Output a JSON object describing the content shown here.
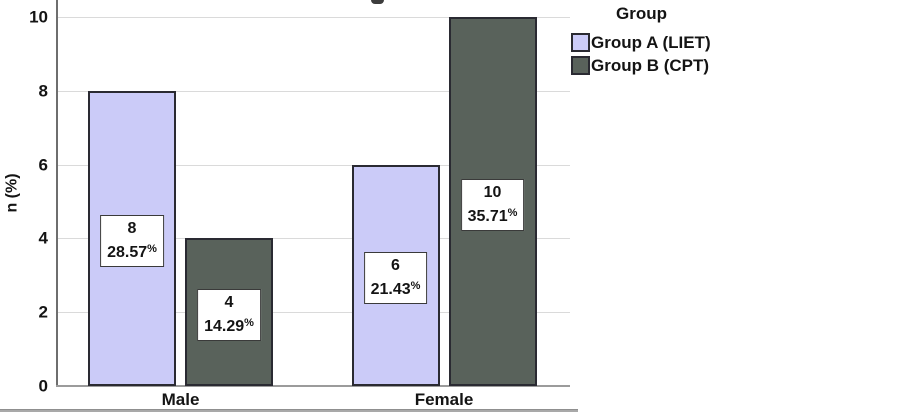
{
  "legend": {
    "title": "Group",
    "items": [
      {
        "label": "Group A (LIET)",
        "color": "#cbcbf8"
      },
      {
        "label": "Group B (CPT)",
        "color": "#59625b"
      }
    ]
  },
  "chart_data": {
    "type": "bar",
    "title": "",
    "ylabel": "n (%)",
    "xlabel": "",
    "categories": [
      "Male",
      "Female"
    ],
    "y_ticks": [
      0,
      2,
      4,
      6,
      8,
      10
    ],
    "ylim": [
      0,
      10.45
    ],
    "grid": true,
    "legend_position": "top-right",
    "series": [
      {
        "name": "Group A (LIET)",
        "color": "#cbcbf8",
        "values": [
          8,
          6
        ],
        "percents": [
          "28.57%",
          "21.43%"
        ]
      },
      {
        "name": "Group B (CPT)",
        "color": "#59625b",
        "values": [
          4,
          10
        ],
        "percents": [
          "14.29%",
          "35.71%"
        ]
      }
    ]
  },
  "colors": {
    "group_a_fill": "#cbcbf8",
    "group_b_fill": "#59625b",
    "bar_border": "#2a2a32",
    "gridline": "#dadada",
    "axis_line": "#6e6e6e",
    "label_box_bg": "#ffffff",
    "label_box_border": "#3a3a3a",
    "text": "#141414"
  }
}
